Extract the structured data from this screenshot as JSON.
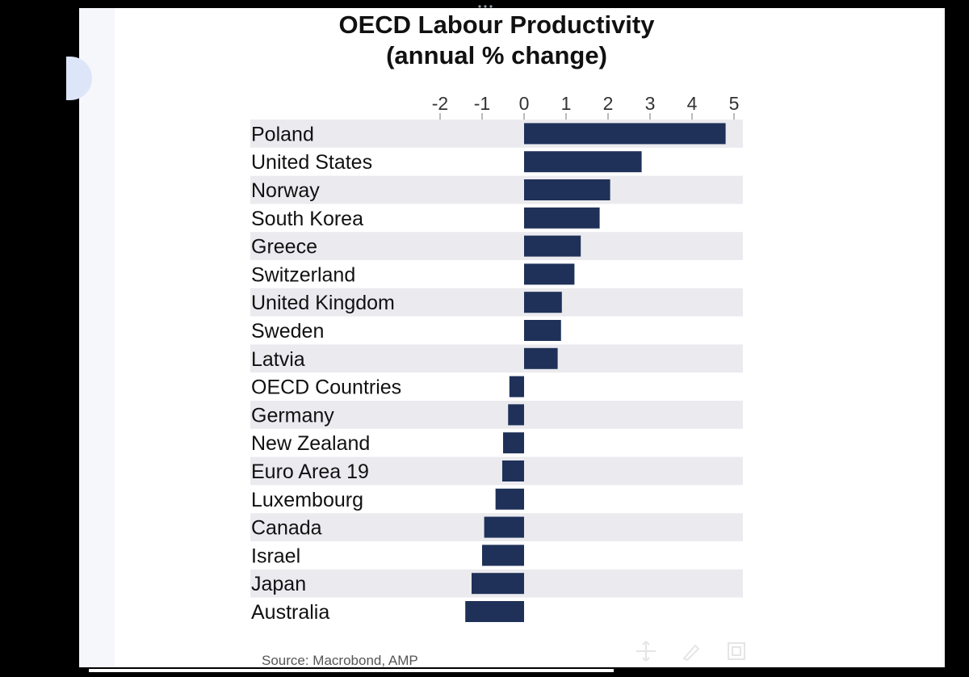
{
  "chart_data": {
    "type": "bar",
    "orientation": "horizontal",
    "title": "OECD Labour Productivity",
    "subtitle": "(annual % change)",
    "categories": [
      "Poland",
      "United States",
      "Norway",
      "South Korea",
      "Greece",
      "Switzerland",
      "United Kingdom",
      "Sweden",
      "Latvia",
      "OECD Countries",
      "Germany",
      "New Zealand",
      "Euro Area 19",
      "Luxembourg",
      "Canada",
      "Israel",
      "Japan",
      "Australia"
    ],
    "values": [
      4.8,
      2.8,
      2.05,
      1.8,
      1.35,
      1.2,
      0.9,
      0.88,
      0.8,
      -0.35,
      -0.38,
      -0.5,
      -0.52,
      -0.68,
      -0.95,
      -1.0,
      -1.25,
      -1.4
    ],
    "xlim": [
      -2,
      5
    ],
    "ticks": [
      -2,
      -1,
      0,
      1,
      2,
      3,
      4,
      5
    ],
    "tick_labels": [
      "-2",
      "-1",
      "0",
      "1",
      "2",
      "3",
      "4",
      "5"
    ],
    "axis_position": "top",
    "bar_color": "#1f3158",
    "stripe_color": "#ebebef",
    "xlabel": "",
    "ylabel": ""
  },
  "source": "Source: Macrobond, AMP",
  "toolbar": {
    "icons": [
      "pan-icon",
      "brush-icon",
      "frame-icon"
    ]
  }
}
